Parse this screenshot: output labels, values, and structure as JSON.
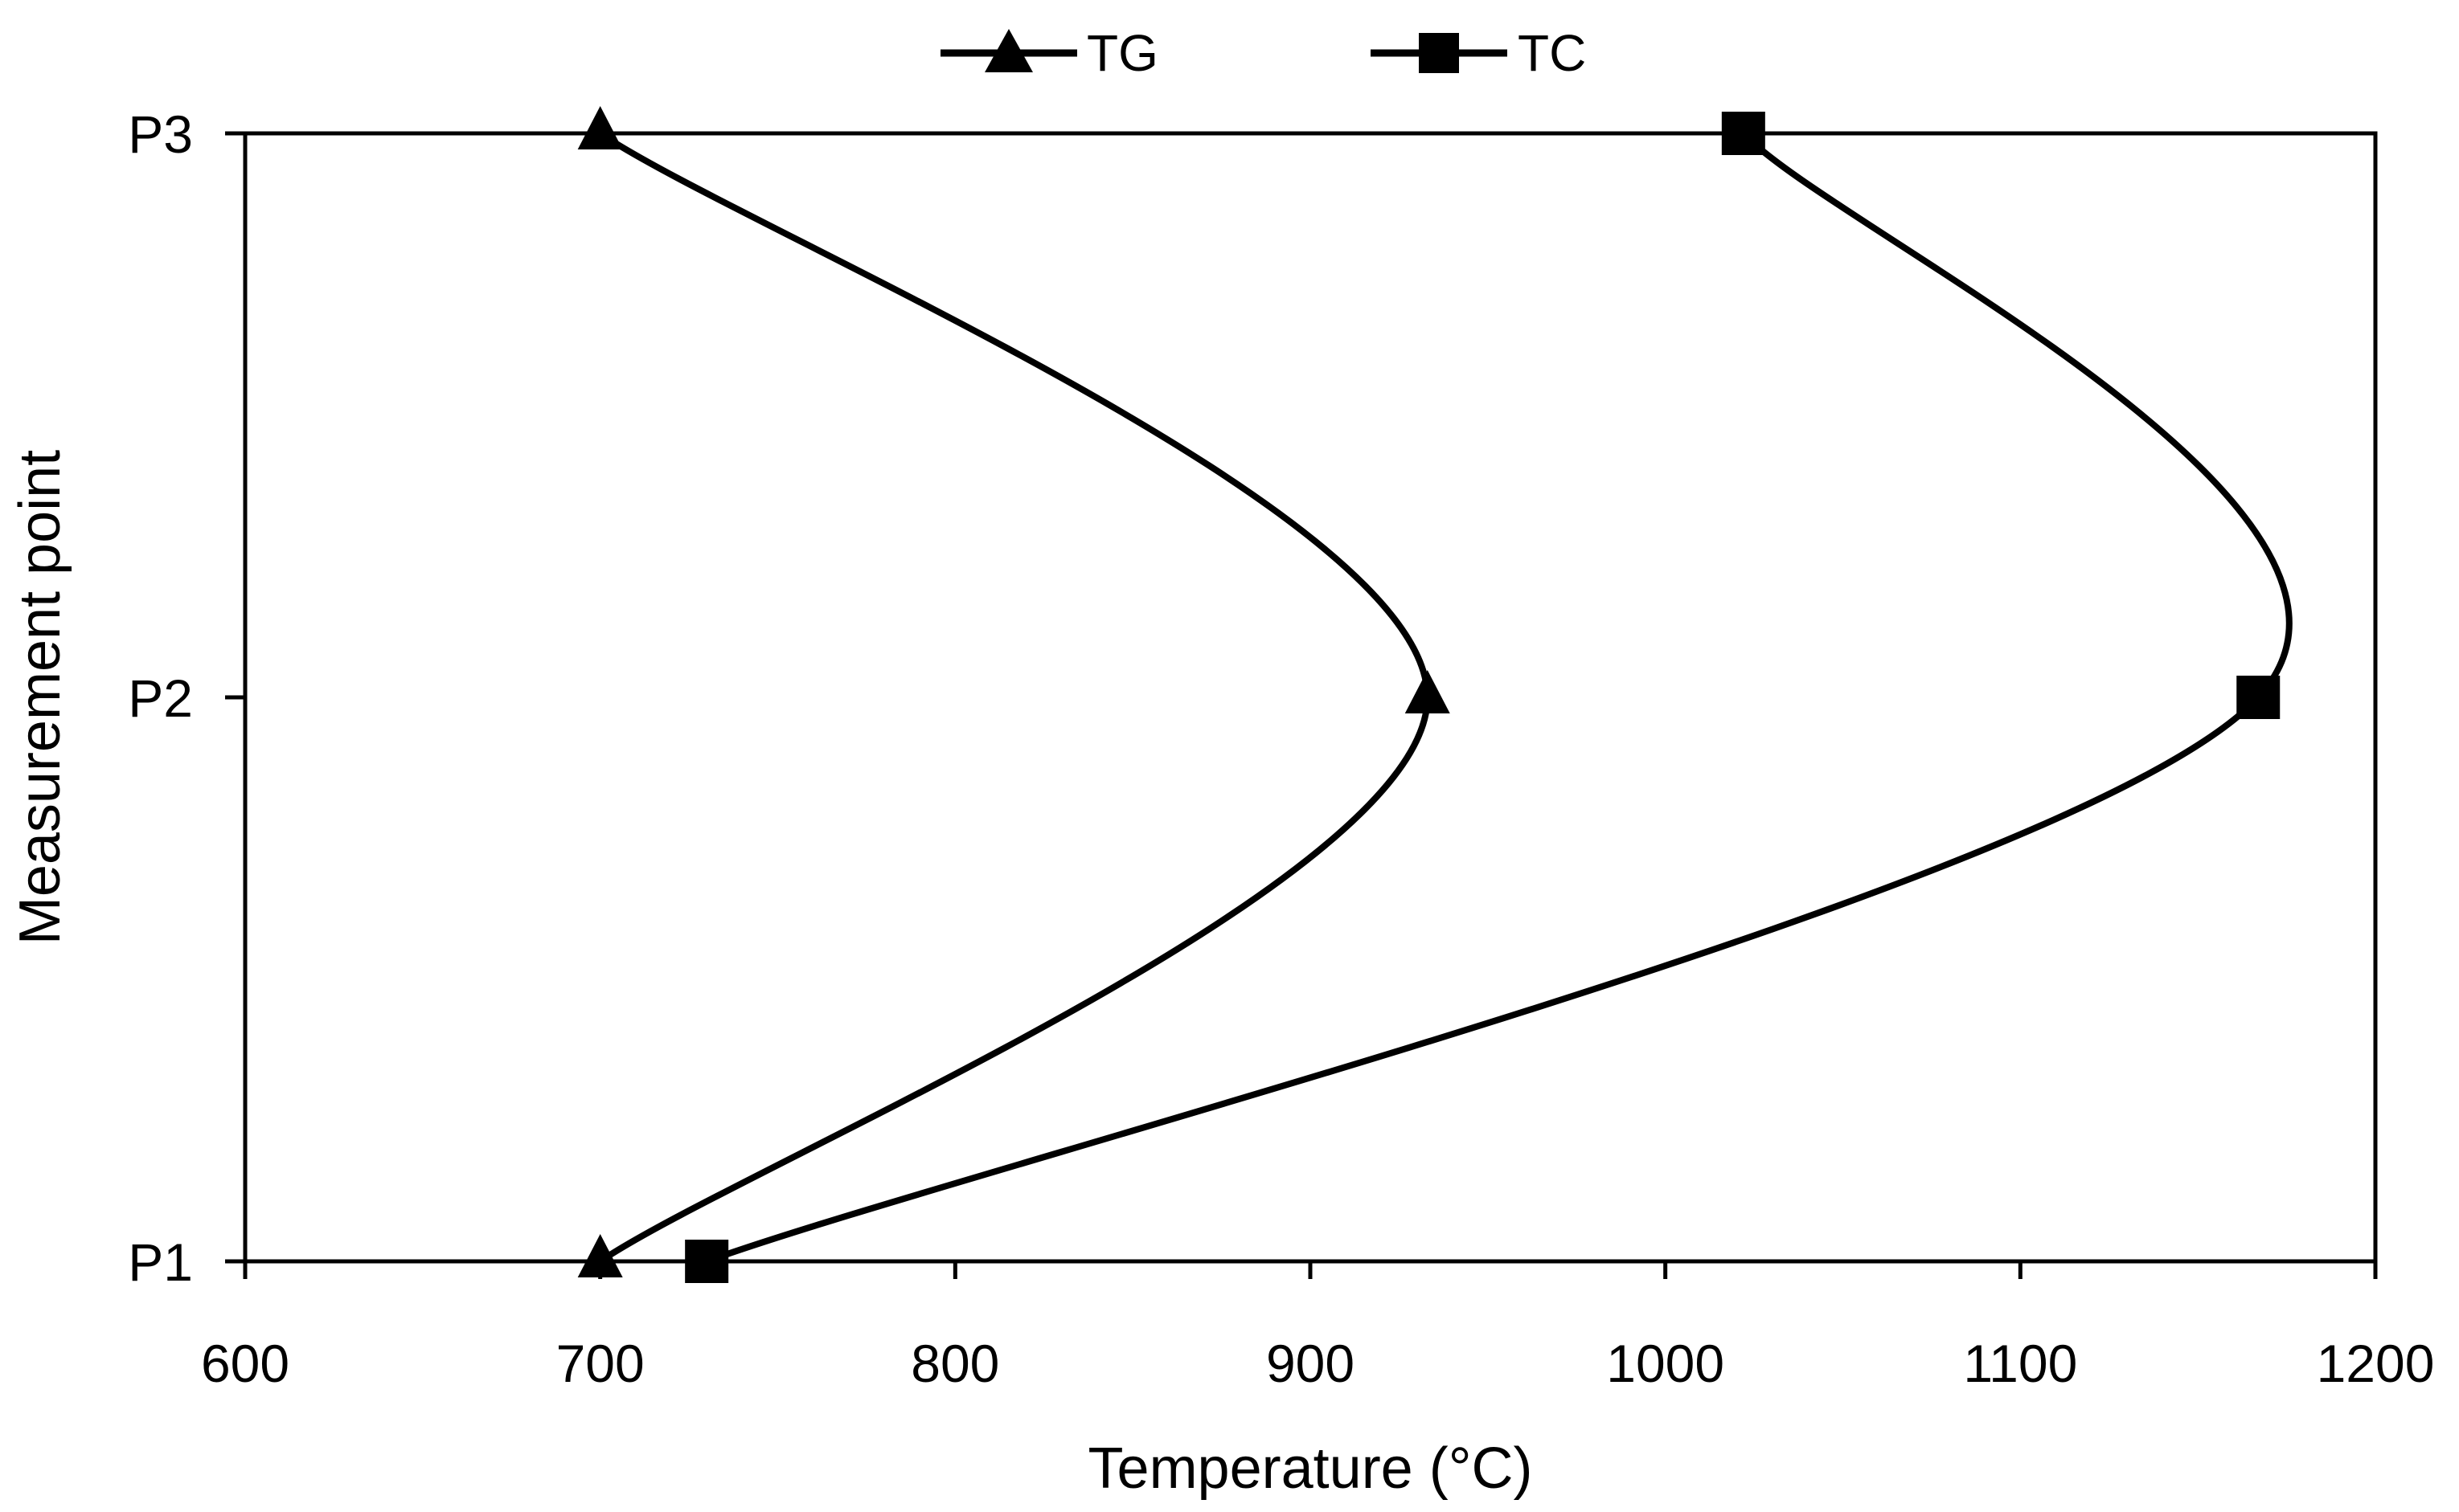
{
  "chart_data": {
    "type": "line",
    "title": "",
    "xlabel": "Temperature (°C)",
    "ylabel": "Measurement point",
    "xlim": [
      600,
      1200
    ],
    "x_ticks": [
      600,
      700,
      800,
      900,
      1000,
      1100,
      1200
    ],
    "x_tick_labels": [
      "600",
      "700",
      "800",
      "900",
      "1000",
      "1100",
      "1200"
    ],
    "y_categories": [
      "P1",
      "P2",
      "P3"
    ],
    "grid": false,
    "legend_position": "top-center",
    "series": [
      {
        "name": "TG",
        "marker": "triangle",
        "x": [
          700,
          933,
          700
        ],
        "y": [
          "P1",
          "P2",
          "P3"
        ]
      },
      {
        "name": "TC",
        "marker": "square",
        "x": [
          730,
          1167,
          1022
        ],
        "y": [
          "P1",
          "P2",
          "P3"
        ]
      }
    ]
  },
  "colors": {
    "line": "#000000",
    "background": "#ffffff"
  }
}
